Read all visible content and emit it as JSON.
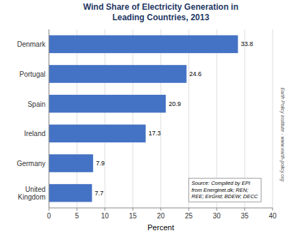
{
  "chart_data": {
    "type": "bar",
    "orientation": "horizontal",
    "title": "Wind Share of Electricity Generation in\nLeading Countries, 2013",
    "categories": [
      "Denmark",
      "Portugal",
      "Spain",
      "Ireland",
      "Germany",
      "United\nKingdom"
    ],
    "values": [
      33.8,
      24.6,
      20.9,
      17.3,
      7.9,
      7.7
    ],
    "color": "#4472C4",
    "xlabel": "Percent",
    "xlim": [
      0,
      40
    ],
    "xticks": [
      0,
      5,
      10,
      15,
      20,
      25,
      30,
      35,
      40
    ],
    "grid": true,
    "data_labels": true,
    "annotations": [
      "Source: Compiled by EPI\nfrom Energinet.dk; REN;\nREE; EirGrid; BDEW; DECC",
      "Earth Policy Institute - www.earth-policy.org"
    ]
  }
}
